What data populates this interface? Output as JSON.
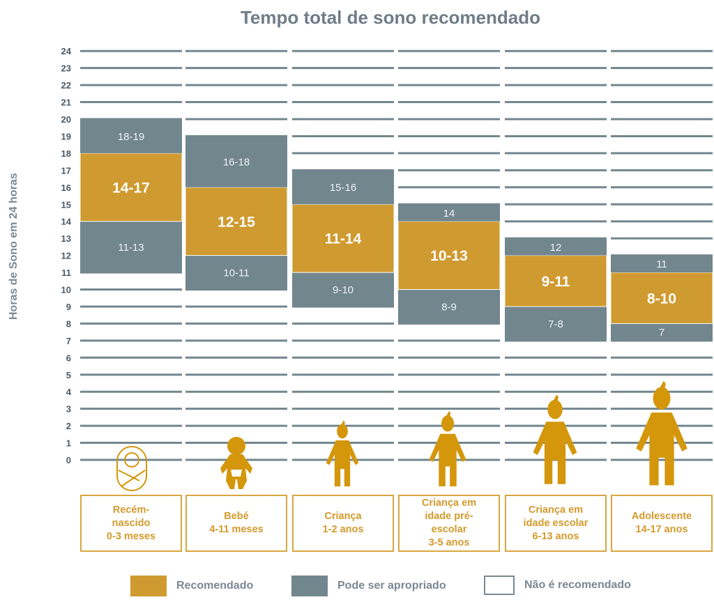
{
  "chart_data": {
    "type": "bar",
    "title": "Tempo total de sono recomendado",
    "ylabel": "Horas de Sono em 24 horas",
    "ylim": [
      0,
      24
    ],
    "yticks": [
      0,
      1,
      2,
      3,
      4,
      5,
      6,
      7,
      8,
      9,
      10,
      11,
      12,
      13,
      14,
      15,
      16,
      17,
      18,
      19,
      20,
      21,
      22,
      23,
      24
    ],
    "grid": true,
    "legend_position": "bottom",
    "colors": {
      "recommended": "#cf9a2f",
      "may_be_appropriate": "#72868e",
      "not_recommended": "#ffffff",
      "icons": "#d4960a"
    },
    "legend": [
      "Recomendado",
      "Pode ser apropriado",
      "Não é recomendado"
    ],
    "categories": [
      {
        "label": "Recém-\nnascido\n0-3 meses",
        "icon": "newborn-icon",
        "low": {
          "range": [
            11,
            13
          ],
          "label": "11-13"
        },
        "recommended": {
          "range": [
            14,
            17
          ],
          "label": "14-17"
        },
        "high": {
          "range": [
            18,
            19
          ],
          "label": "18-19"
        }
      },
      {
        "label": "Bebé\n4-11 meses",
        "icon": "baby-icon",
        "low": {
          "range": [
            10,
            11
          ],
          "label": "10-11"
        },
        "recommended": {
          "range": [
            12,
            15
          ],
          "label": "12-15"
        },
        "high": {
          "range": [
            16,
            18
          ],
          "label": "16-18"
        }
      },
      {
        "label": "Criança\n1-2 anos",
        "icon": "toddler-icon",
        "low": {
          "range": [
            9,
            10
          ],
          "label": "9-10"
        },
        "recommended": {
          "range": [
            11,
            14
          ],
          "label": "11-14"
        },
        "high": {
          "range": [
            15,
            16
          ],
          "label": "15-16"
        }
      },
      {
        "label": "Criança em\nidade pré-\nescolar\n3-5 anos",
        "icon": "preschooler-icon",
        "low": {
          "range": [
            8,
            9
          ],
          "label": "8-9"
        },
        "recommended": {
          "range": [
            10,
            13
          ],
          "label": "10-13"
        },
        "high": {
          "range": [
            14,
            14
          ],
          "label": "14"
        }
      },
      {
        "label": "Criança em\nidade escolar\n6-13 anos",
        "icon": "schoolchild-icon",
        "low": {
          "range": [
            7,
            8
          ],
          "label": "7-8"
        },
        "recommended": {
          "range": [
            9,
            11
          ],
          "label": "9-11"
        },
        "high": {
          "range": [
            12,
            12
          ],
          "label": "12"
        }
      },
      {
        "label": "Adolescente\n14-17 anos",
        "icon": "teenager-icon",
        "low": {
          "range": [
            7,
            7
          ],
          "label": "7"
        },
        "recommended": {
          "range": [
            8,
            10
          ],
          "label": "8-10"
        },
        "high": {
          "range": [
            11,
            11
          ],
          "label": "11"
        }
      }
    ]
  }
}
